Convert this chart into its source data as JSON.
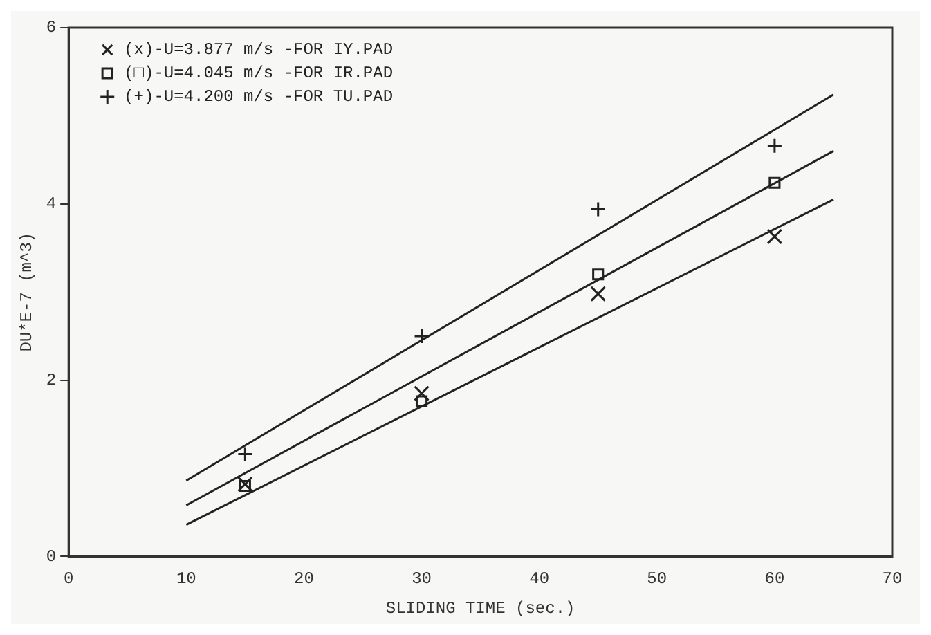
{
  "chart_data": {
    "type": "scatter",
    "xlabel": "SLIDING TIME (sec.)",
    "ylabel": "DU*E-7 (m^3)",
    "xlim": [
      0,
      70
    ],
    "xticks": [
      0,
      10,
      20,
      30,
      40,
      50,
      60,
      70
    ],
    "ylim": [
      0,
      6
    ],
    "yticks": [
      0,
      2,
      4,
      6
    ],
    "grid": false,
    "legend": "top left",
    "series": [
      {
        "name": "(x)-U=3.877 m/s -FOR IY.PAD",
        "type": "scatter",
        "marker": "cross",
        "color": "#222222",
        "x": [
          15,
          30,
          45,
          60
        ],
        "values": [
          0.82,
          1.85,
          2.98,
          3.63
        ]
      },
      {
        "name": "(□)-U=4.045 m/s -FOR IR.PAD",
        "type": "scatter",
        "marker": "square",
        "color": "#222222",
        "x": [
          15,
          30,
          45,
          60
        ],
        "values": [
          0.8,
          1.76,
          3.2,
          4.24
        ]
      },
      {
        "name": "(+)-U=4.200 m/s -FOR TU.PAD",
        "type": "scatter",
        "marker": "plus",
        "color": "#222222",
        "x": [
          15,
          30,
          45,
          60
        ],
        "values": [
          1.16,
          2.5,
          3.94,
          4.66
        ]
      },
      {
        "type": "line",
        "marker": "none",
        "color": "#222222",
        "x": [
          10,
          65
        ],
        "values": [
          0.36,
          4.05
        ]
      },
      {
        "type": "line",
        "marker": "none",
        "color": "#222222",
        "x": [
          10,
          65
        ],
        "values": [
          0.58,
          4.6
        ]
      },
      {
        "type": "line",
        "marker": "none",
        "color": "#222222",
        "x": [
          10,
          65
        ],
        "values": [
          0.86,
          5.24
        ]
      }
    ]
  }
}
